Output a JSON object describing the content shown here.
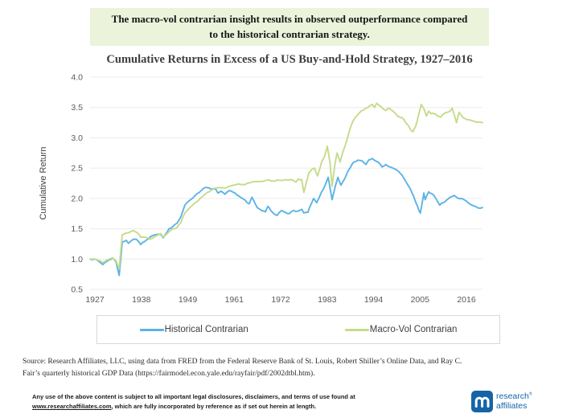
{
  "banner": {
    "text": "The macro-vol contrarian insight results in observed outperformance compared to the historical contrarian strategy.",
    "bg_color": "#ebf3db"
  },
  "chart_data": {
    "type": "line",
    "title": "Cumulative Returns in Excess of a US Buy-and-Hold Strategy, 1927–2016",
    "xlabel": "",
    "ylabel": "Cumulative Return",
    "ylim": [
      0.5,
      4.0
    ],
    "x_range_years": [
      1927,
      2016
    ],
    "yticks": [
      "4.0",
      "3.5",
      "3.0",
      "2.5",
      "2.0",
      "1.5",
      "1.0",
      "0.5"
    ],
    "xticks": [
      "1927",
      "1938",
      "1949",
      "1961",
      "1972",
      "1983",
      "1994",
      "2005",
      "2016"
    ],
    "grid": "horizontal-only",
    "legend_position": "bottom-box",
    "series": [
      {
        "name": "Historical Contrarian",
        "color": "#5bb3e6",
        "points": [
          [
            1927,
            1.0
          ],
          [
            1928.4,
            0.99
          ],
          [
            1929.9,
            0.91
          ],
          [
            1931.4,
            0.99
          ],
          [
            1932.1,
            1.02
          ],
          [
            1932.9,
            0.95
          ],
          [
            1933.6,
            0.73
          ],
          [
            1934.3,
            1.28
          ],
          [
            1935.2,
            1.31
          ],
          [
            1935.7,
            1.26
          ],
          [
            1936.3,
            1.3
          ],
          [
            1936.9,
            1.33
          ],
          [
            1937.6,
            1.32
          ],
          [
            1938.5,
            1.24
          ],
          [
            1939.4,
            1.29
          ],
          [
            1940.7,
            1.37
          ],
          [
            1941.8,
            1.4
          ],
          [
            1943.0,
            1.41
          ],
          [
            1943.6,
            1.35
          ],
          [
            1944.9,
            1.5
          ],
          [
            1945.8,
            1.54
          ],
          [
            1946.7,
            1.59
          ],
          [
            1947.6,
            1.7
          ],
          [
            1948.5,
            1.89
          ],
          [
            1949.8,
            1.98
          ],
          [
            1951.3,
            2.08
          ],
          [
            1953.1,
            2.18
          ],
          [
            1954.3,
            2.16
          ],
          [
            1955.5,
            2.15
          ],
          [
            1956.0,
            2.09
          ],
          [
            1956.7,
            2.12
          ],
          [
            1957.6,
            2.07
          ],
          [
            1958.5,
            2.13
          ],
          [
            1959.5,
            2.1
          ],
          [
            1960.7,
            2.04
          ],
          [
            1961.8,
            1.99
          ],
          [
            1962.6,
            1.93
          ],
          [
            1963.1,
            1.91
          ],
          [
            1963.7,
            2.02
          ],
          [
            1964.4,
            1.92
          ],
          [
            1964.9,
            1.85
          ],
          [
            1965.9,
            1.8
          ],
          [
            1966.8,
            1.78
          ],
          [
            1967.3,
            1.87
          ],
          [
            1968.0,
            1.8
          ],
          [
            1968.7,
            1.75
          ],
          [
            1969.4,
            1.72
          ],
          [
            1970.4,
            1.8
          ],
          [
            1971.3,
            1.77
          ],
          [
            1972.2,
            1.75
          ],
          [
            1973.1,
            1.8
          ],
          [
            1974.1,
            1.79
          ],
          [
            1975.0,
            1.82
          ],
          [
            1975.5,
            1.76
          ],
          [
            1976.4,
            1.77
          ],
          [
            1977.1,
            1.9
          ],
          [
            1977.7,
            2.0
          ],
          [
            1978.4,
            1.93
          ],
          [
            1979.5,
            2.11
          ],
          [
            1980.2,
            2.2
          ],
          [
            1981.0,
            2.35
          ],
          [
            1981.6,
            2.1
          ],
          [
            1981.9,
            1.98
          ],
          [
            1982.6,
            2.2
          ],
          [
            1983.2,
            2.35
          ],
          [
            1983.9,
            2.22
          ],
          [
            1984.7,
            2.32
          ],
          [
            1985.4,
            2.44
          ],
          [
            1986.1,
            2.52
          ],
          [
            1986.8,
            2.6
          ],
          [
            1987.7,
            2.63
          ],
          [
            1988.7,
            2.62
          ],
          [
            1989.6,
            2.56
          ],
          [
            1990.3,
            2.64
          ],
          [
            1991.0,
            2.66
          ],
          [
            1991.7,
            2.62
          ],
          [
            1992.3,
            2.6
          ],
          [
            1993.2,
            2.52
          ],
          [
            1994.1,
            2.56
          ],
          [
            1995.0,
            2.52
          ],
          [
            1996.0,
            2.49
          ],
          [
            1996.9,
            2.45
          ],
          [
            1997.8,
            2.38
          ],
          [
            1998.6,
            2.28
          ],
          [
            1999.6,
            2.16
          ],
          [
            2000.3,
            2.05
          ],
          [
            2000.9,
            1.93
          ],
          [
            2001.6,
            1.8
          ],
          [
            2001.9,
            1.76
          ],
          [
            2002.7,
            2.09
          ],
          [
            2003.0,
            1.98
          ],
          [
            2003.8,
            2.11
          ],
          [
            2004.5,
            2.08
          ],
          [
            2005.0,
            2.05
          ],
          [
            2005.8,
            1.95
          ],
          [
            2006.3,
            1.89
          ],
          [
            2007.1,
            1.93
          ],
          [
            2007.8,
            1.97
          ],
          [
            2008.7,
            2.02
          ],
          [
            2009.6,
            2.05
          ],
          [
            2010.3,
            2.01
          ],
          [
            2011.1,
            2.0
          ],
          [
            2011.8,
            1.98
          ],
          [
            2012.7,
            1.93
          ],
          [
            2013.6,
            1.89
          ],
          [
            2014.6,
            1.86
          ],
          [
            2015.5,
            1.84
          ],
          [
            2016,
            1.85
          ]
        ]
      },
      {
        "name": "Macro-Vol Contrarian",
        "color": "#c5db8a",
        "points": [
          [
            1927,
            1.0
          ],
          [
            1928.4,
            0.99
          ],
          [
            1929.9,
            0.94
          ],
          [
            1931.4,
            1.0
          ],
          [
            1932.1,
            1.02
          ],
          [
            1932.9,
            0.97
          ],
          [
            1933.6,
            0.84
          ],
          [
            1934.3,
            1.4
          ],
          [
            1935.2,
            1.43
          ],
          [
            1935.9,
            1.44
          ],
          [
            1936.9,
            1.47
          ],
          [
            1937.6,
            1.44
          ],
          [
            1938.5,
            1.36
          ],
          [
            1939.4,
            1.36
          ],
          [
            1940.7,
            1.33
          ],
          [
            1941.8,
            1.38
          ],
          [
            1943.0,
            1.42
          ],
          [
            1943.6,
            1.36
          ],
          [
            1944.9,
            1.45
          ],
          [
            1945.8,
            1.5
          ],
          [
            1946.7,
            1.52
          ],
          [
            1947.6,
            1.6
          ],
          [
            1948.5,
            1.76
          ],
          [
            1949.8,
            1.86
          ],
          [
            1951.3,
            1.95
          ],
          [
            1952.5,
            2.03
          ],
          [
            1953.6,
            2.1
          ],
          [
            1954.9,
            2.15
          ],
          [
            1956.4,
            2.18
          ],
          [
            1957.6,
            2.17
          ],
          [
            1958.5,
            2.2
          ],
          [
            1959.5,
            2.22
          ],
          [
            1960.7,
            2.24
          ],
          [
            1961.8,
            2.23
          ],
          [
            1962.6,
            2.25
          ],
          [
            1963.7,
            2.27
          ],
          [
            1964.9,
            2.28
          ],
          [
            1966.2,
            2.28
          ],
          [
            1967.3,
            2.3
          ],
          [
            1968.6,
            2.29
          ],
          [
            1969.8,
            2.3
          ],
          [
            1971.3,
            2.31
          ],
          [
            1972.7,
            2.31
          ],
          [
            1973.7,
            2.27
          ],
          [
            1974.2,
            2.32
          ],
          [
            1975.0,
            2.31
          ],
          [
            1975.5,
            2.1
          ],
          [
            1976.0,
            2.25
          ],
          [
            1976.6,
            2.42
          ],
          [
            1977.3,
            2.48
          ],
          [
            1977.9,
            2.5
          ],
          [
            1978.6,
            2.37
          ],
          [
            1979.5,
            2.6
          ],
          [
            1980.2,
            2.7
          ],
          [
            1980.8,
            2.86
          ],
          [
            1981.4,
            2.6
          ],
          [
            1981.9,
            2.2
          ],
          [
            1982.5,
            2.55
          ],
          [
            1983.0,
            2.75
          ],
          [
            1983.7,
            2.6
          ],
          [
            1984.4,
            2.78
          ],
          [
            1985.4,
            3.0
          ],
          [
            1986.1,
            3.18
          ],
          [
            1986.8,
            3.3
          ],
          [
            1987.7,
            3.38
          ],
          [
            1988.7,
            3.45
          ],
          [
            1989.6,
            3.49
          ],
          [
            1990.3,
            3.52
          ],
          [
            1991.0,
            3.55
          ],
          [
            1991.5,
            3.5
          ],
          [
            1992.0,
            3.57
          ],
          [
            1992.9,
            3.52
          ],
          [
            1993.6,
            3.47
          ],
          [
            1994.1,
            3.45
          ],
          [
            1994.8,
            3.49
          ],
          [
            1995.5,
            3.45
          ],
          [
            1996.3,
            3.4
          ],
          [
            1997.0,
            3.35
          ],
          [
            1997.8,
            3.33
          ],
          [
            1998.5,
            3.26
          ],
          [
            1999.2,
            3.2
          ],
          [
            1999.8,
            3.12
          ],
          [
            2000.2,
            3.1
          ],
          [
            2000.9,
            3.2
          ],
          [
            2001.6,
            3.4
          ],
          [
            2002.1,
            3.55
          ],
          [
            2002.7,
            3.48
          ],
          [
            2003.3,
            3.36
          ],
          [
            2003.8,
            3.44
          ],
          [
            2004.3,
            3.4
          ],
          [
            2005.0,
            3.4
          ],
          [
            2005.8,
            3.36
          ],
          [
            2006.5,
            3.34
          ],
          [
            2007.3,
            3.4
          ],
          [
            2008.0,
            3.42
          ],
          [
            2008.7,
            3.44
          ],
          [
            2009.1,
            3.49
          ],
          [
            2009.6,
            3.38
          ],
          [
            2010.1,
            3.25
          ],
          [
            2010.7,
            3.42
          ],
          [
            2011.1,
            3.38
          ],
          [
            2011.6,
            3.33
          ],
          [
            2012.4,
            3.3
          ],
          [
            2013.3,
            3.29
          ],
          [
            2014.2,
            3.27
          ],
          [
            2015.1,
            3.26
          ],
          [
            2016,
            3.25
          ]
        ]
      }
    ]
  },
  "source_lines": {
    "line1": "Source: Research Affiliates, LLC, using data from FRED from the Federal Reserve Bank of St. Louis, Robert Shiller’s Online Data, and Ray C.",
    "line2": "Fair’s quarterly historical GDP Data (https://fairmodel.econ.yale.edu/rayfair/pdf/2002dtbl.htm)."
  },
  "footer": {
    "disclaimer_line1": "Any use of the above content is subject to all important legal disclosures, disclaimers, and terms of use found at",
    "disclaimer_link": "www.researchaffiliates.com",
    "disclaimer_line2": ", which are fully incorporated by reference as if set out herein at length.",
    "logo": {
      "word1": "research",
      "trademark": "®",
      "word2": "affiliates",
      "color": "#1564a6"
    }
  }
}
